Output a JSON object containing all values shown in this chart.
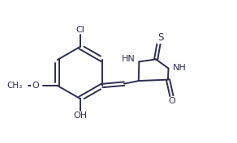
{
  "background_color": "#ffffff",
  "line_color": "#2d2d52",
  "line_width": 1.4,
  "font_size": 8.0,
  "fig_width": 2.92,
  "fig_height": 1.77,
  "xlim": [
    -0.3,
    9.5
  ],
  "ylim": [
    2.2,
    8.0
  ]
}
